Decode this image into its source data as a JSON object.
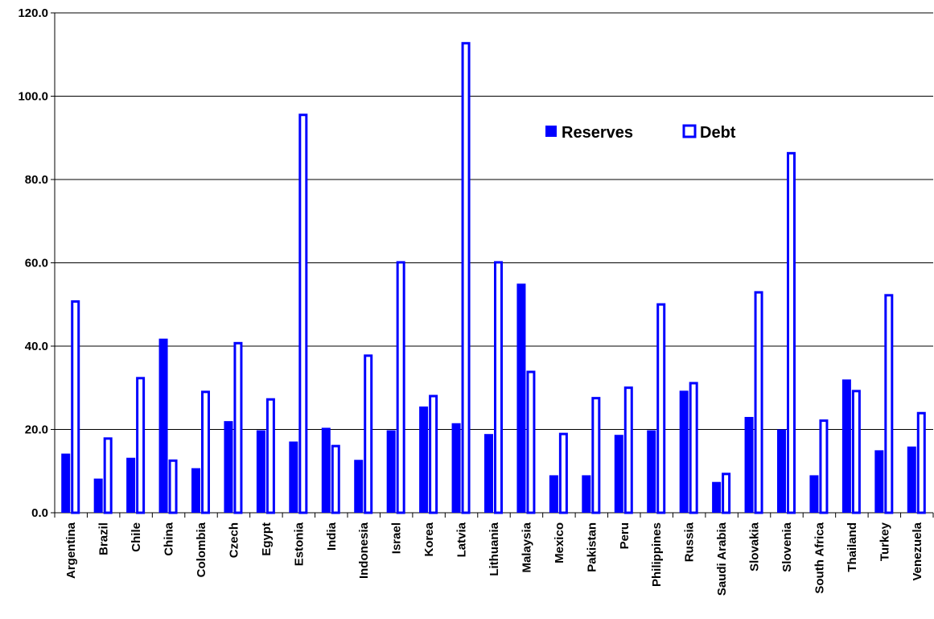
{
  "chart_data": {
    "type": "bar",
    "title": "",
    "xlabel": "",
    "ylabel": "",
    "ylim": [
      0,
      120
    ],
    "yticks": [
      "0.0",
      "20.0",
      "40.0",
      "60.0",
      "80.0",
      "100.0",
      "120.0"
    ],
    "grid": true,
    "legend_position": "top-right-center",
    "categories": [
      "Argentina",
      "Brazil",
      "Chile",
      "China",
      "Colombia",
      "Czech",
      "Egypt",
      "Estonia",
      "India",
      "Indonesia",
      "Israel",
      "Korea",
      "Latvia",
      "Lithuania",
      "Malaysia",
      "Mexico",
      "Pakistan",
      "Peru",
      "Philippines",
      "Russia",
      "Saudi Arabia",
      "Slovakia",
      "Slovenia",
      "South Africa",
      "Thailand",
      "Turkey",
      "Venezuela"
    ],
    "series": [
      {
        "name": "Reserves",
        "style": "filled",
        "color": "#0000ff",
        "values": [
          14.2,
          8.2,
          13.2,
          41.8,
          10.7,
          22.0,
          19.8,
          17.1,
          20.4,
          12.7,
          19.8,
          25.5,
          21.5,
          18.9,
          55.0,
          9.0,
          9.0,
          18.7,
          19.8,
          29.3,
          7.4,
          23.0,
          20.0,
          9.0,
          32.0,
          15.0,
          15.9
        ]
      },
      {
        "name": "Debt",
        "style": "hollow",
        "color": "#0000ff",
        "values": [
          51.0,
          18.1,
          32.6,
          12.8,
          29.3,
          41.0,
          27.5,
          95.8,
          16.3,
          38.0,
          60.4,
          28.3,
          113.0,
          60.4,
          34.1,
          19.2,
          27.8,
          30.3,
          50.3,
          31.4,
          9.6,
          53.2,
          86.6,
          22.4,
          29.5,
          52.5,
          24.2
        ]
      }
    ]
  }
}
